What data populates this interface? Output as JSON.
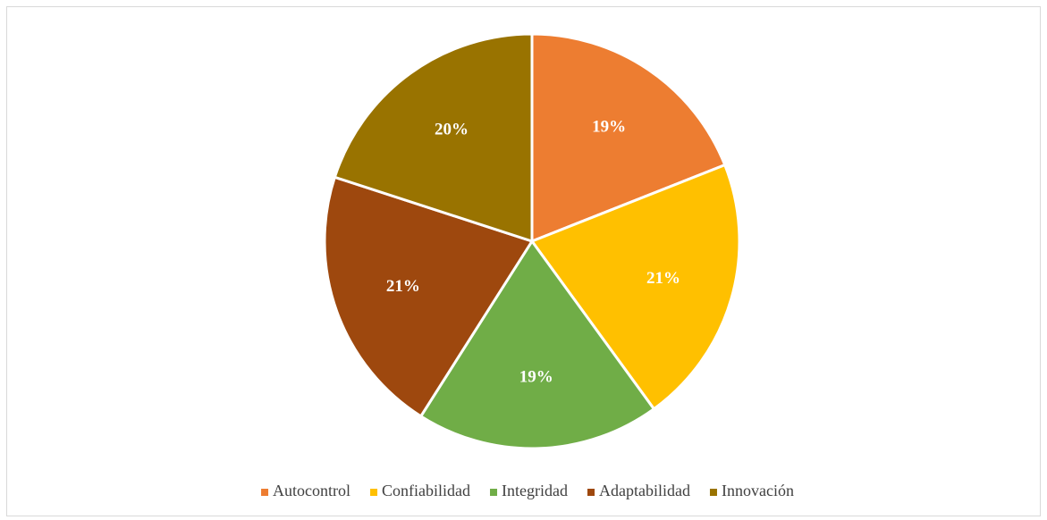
{
  "chart_data": {
    "type": "pie",
    "categories": [
      "Autocontrol",
      "Confiabilidad",
      "Integridad",
      "Adaptabilidad",
      "Innovación"
    ],
    "values": [
      19,
      21,
      19,
      21,
      20
    ],
    "value_labels": [
      "19%",
      "21%",
      "19%",
      "21%",
      "20%"
    ],
    "colors": [
      "#ED7D31",
      "#FFC000",
      "#70AD47",
      "#9E480E",
      "#997300"
    ],
    "legend": "bottom"
  }
}
